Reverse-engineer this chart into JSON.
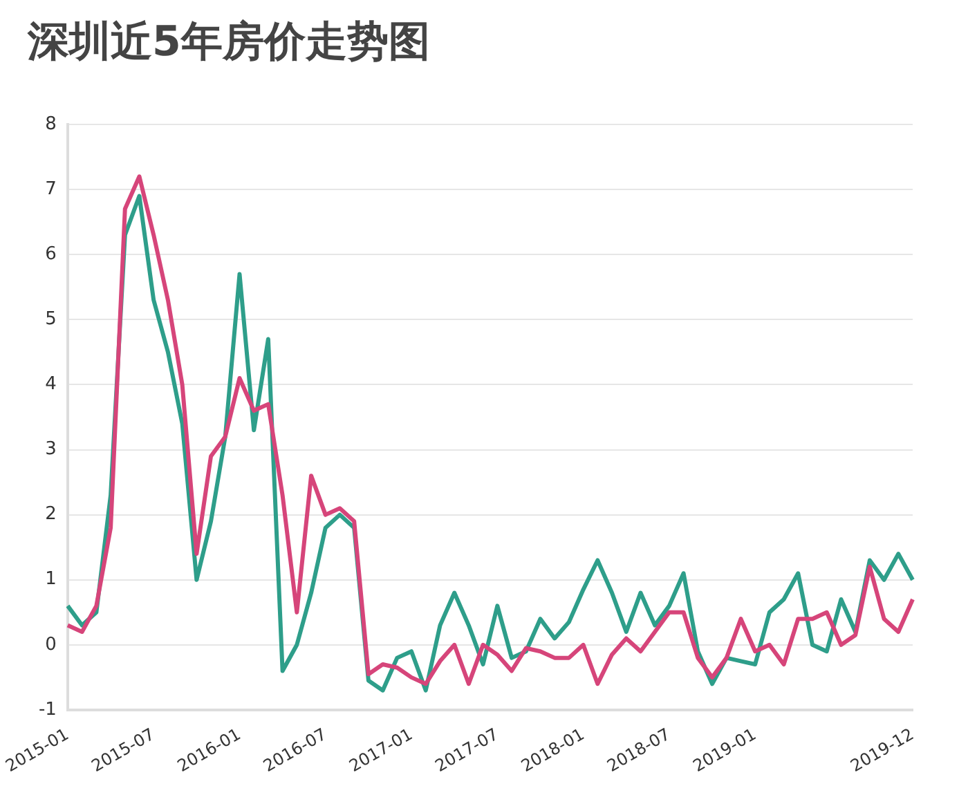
{
  "chart_data": {
    "type": "line",
    "title": "深圳近5年房价走势图",
    "categories": [
      "2015-01",
      null,
      null,
      null,
      null,
      null,
      "2015-07",
      null,
      null,
      null,
      null,
      null,
      "2016-01",
      null,
      null,
      null,
      null,
      null,
      "2016-07",
      null,
      null,
      null,
      null,
      null,
      "2017-01",
      null,
      null,
      null,
      null,
      null,
      "2017-07",
      null,
      null,
      null,
      null,
      null,
      "2018-01",
      null,
      null,
      null,
      null,
      null,
      "2018-07",
      null,
      null,
      null,
      null,
      null,
      "2019-01",
      null,
      null,
      null,
      null,
      null,
      null,
      null,
      null,
      null,
      null,
      "2019-12"
    ],
    "series": [
      {
        "color": "#d6457a",
        "values": [
          0.3,
          0.2,
          0.6,
          1.8,
          6.7,
          7.2,
          6.3,
          5.3,
          4.0,
          1.4,
          2.9,
          3.2,
          4.1,
          3.6,
          3.7,
          2.3,
          0.5,
          2.6,
          2.0,
          2.1,
          1.9,
          -0.45,
          -0.3,
          -0.35,
          -0.5,
          -0.6,
          -0.25,
          0,
          -0.6,
          0,
          -0.15,
          -0.4,
          -0.05,
          -0.1,
          -0.2,
          -0.2,
          0,
          -0.6,
          -0.15,
          0.1,
          -0.1,
          0.2,
          0.5,
          0.5,
          -0.2,
          -0.5,
          -0.2,
          0.4,
          -0.1,
          0,
          -0.3,
          0.4,
          0.4,
          0.5,
          0,
          0.15,
          1.2,
          0.4,
          0.2,
          0.7
        ]
      },
      {
        "color": "#2e9e8a",
        "values": [
          0.6,
          0.3,
          0.5,
          2.3,
          6.3,
          6.9,
          5.3,
          4.5,
          3.4,
          1.0,
          1.9,
          3.2,
          5.7,
          3.3,
          4.7,
          -0.4,
          0,
          0.8,
          1.8,
          2.0,
          1.8,
          -0.55,
          -0.7,
          -0.2,
          -0.1,
          -0.7,
          0.3,
          0.8,
          0.3,
          -0.3,
          0.6,
          -0.2,
          -0.1,
          0.4,
          0.1,
          0.35,
          0.85,
          1.3,
          0.8,
          0.2,
          0.8,
          0.3,
          0.6,
          1.1,
          -0.1,
          -0.6,
          -0.2,
          -0.25,
          -0.3,
          0.5,
          0.7,
          1.1,
          0,
          -0.1,
          0.7,
          0.2,
          1.3,
          1.0,
          1.4,
          1.0
        ]
      }
    ],
    "ylim": [
      -1,
      8
    ],
    "yticks": [
      -1,
      0,
      1,
      2,
      3,
      4,
      5,
      6,
      7,
      8
    ],
    "grid": "y",
    "legend": false,
    "marker": "none",
    "line_style": "solid"
  }
}
